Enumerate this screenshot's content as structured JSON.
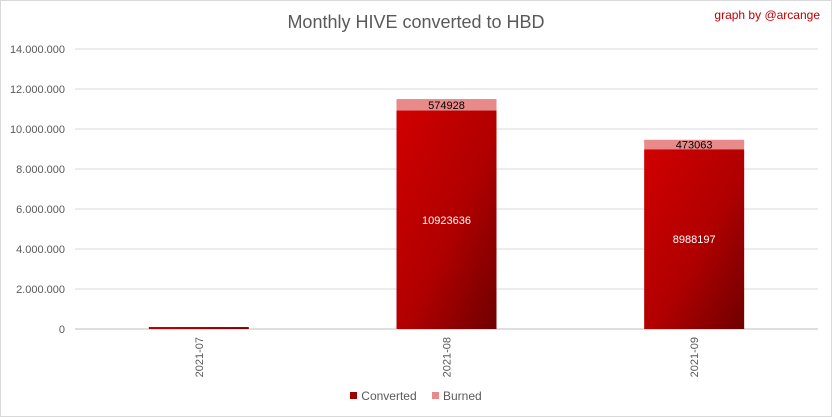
{
  "chart_data": {
    "type": "bar",
    "stacked": true,
    "title": "Monthly HIVE converted to HBD",
    "credit": "graph by @arcange",
    "categories": [
      "2021-07",
      "2021-08",
      "2021-09"
    ],
    "series": [
      {
        "name": "Converted",
        "values": [
          100000,
          10923636,
          8988197
        ],
        "labels": [
          "",
          "10923636",
          "8988197"
        ],
        "color": "#c00000"
      },
      {
        "name": "Burned",
        "values": [
          0,
          574928,
          473063
        ],
        "labels": [
          "",
          "574928",
          "473063"
        ],
        "color": "#e88a8a"
      }
    ],
    "ylim": [
      0,
      14000000
    ],
    "yticks": [
      0,
      2000000,
      4000000,
      6000000,
      8000000,
      10000000,
      12000000,
      14000000
    ],
    "ytick_labels": [
      "0",
      "2.000.000",
      "4.000.000",
      "6.000.000",
      "8.000.000",
      "10.000.000",
      "12.000.000",
      "14.000.000"
    ],
    "grid": true,
    "legend": "bottom"
  }
}
